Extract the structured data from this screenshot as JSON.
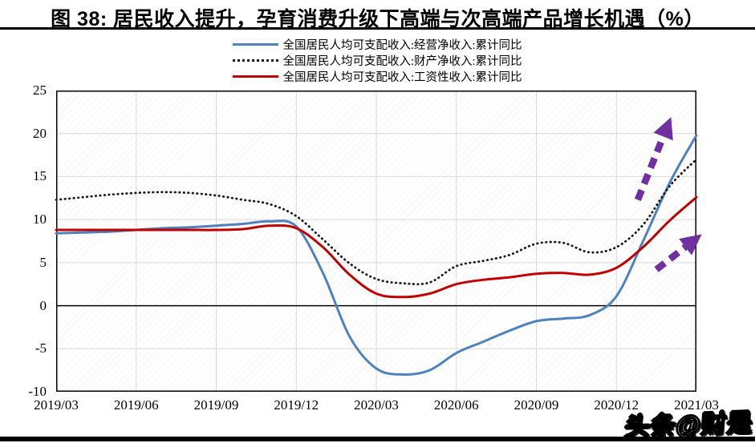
{
  "title": "图 38: 居民收入提升，孕育消费升级下高端与次高端产品增长机遇（%）",
  "watermark": "头条@财是",
  "colors": {
    "series_blue": "#4F81BD",
    "series_black": "#1a1a1a",
    "series_red": "#C00000",
    "arrow_purple": "#7030A0",
    "gridline": "#D9D9D9",
    "axis": "#000000"
  },
  "chart_data": {
    "type": "line",
    "title": "图 38: 居民收入提升，孕育消费升级下高端与次高端产品增长机遇（%）",
    "xlabel": "",
    "ylabel": "",
    "ylim": [
      -10,
      25
    ],
    "y_ticks": [
      25,
      20,
      15,
      10,
      5,
      0,
      -5,
      -10
    ],
    "x_tick_labels": [
      "2019/03",
      "2019/06",
      "2019/09",
      "2019/12",
      "2020/03",
      "2020/06",
      "2020/09",
      "2020/12",
      "2021/03"
    ],
    "x": [
      "2019/03",
      "2019/04",
      "2019/05",
      "2019/06",
      "2019/07",
      "2019/08",
      "2019/09",
      "2019/10",
      "2019/11",
      "2019/12",
      "2020/01",
      "2020/02",
      "2020/03",
      "2020/04",
      "2020/05",
      "2020/06",
      "2020/07",
      "2020/08",
      "2020/09",
      "2020/10",
      "2020/11",
      "2020/12",
      "2021/01",
      "2021/02",
      "2021/03"
    ],
    "grid": true,
    "legend_position": "top",
    "series": [
      {
        "name": "全国居民人均可支配收入:经营净收入:累计同比",
        "style": "solid",
        "color": "#4F81BD",
        "values": [
          8.4,
          8.5,
          8.6,
          8.8,
          9.0,
          9.1,
          9.3,
          9.5,
          9.8,
          9.2,
          3.8,
          -3.6,
          -7.3,
          -8.0,
          -7.5,
          -5.5,
          -4.2,
          -2.9,
          -1.8,
          -1.5,
          -1.1,
          1.1,
          7.5,
          14.3,
          19.8
        ]
      },
      {
        "name": "全国居民人均可支配收入:财产净收入:累计同比",
        "style": "dotted",
        "color": "#1a1a1a",
        "values": [
          12.3,
          12.6,
          12.9,
          13.1,
          13.2,
          13.1,
          12.8,
          12.3,
          11.8,
          10.4,
          7.7,
          4.9,
          3.1,
          2.6,
          2.7,
          4.6,
          5.2,
          5.9,
          7.2,
          7.3,
          6.2,
          6.8,
          9.4,
          13.9,
          17.0
        ]
      },
      {
        "name": "全国居民人均可支配收入:工资性收入:累计同比",
        "style": "solid",
        "color": "#C00000",
        "values": [
          8.8,
          8.8,
          8.8,
          8.8,
          8.8,
          8.8,
          8.8,
          8.9,
          9.3,
          9.0,
          6.8,
          3.6,
          1.4,
          1.0,
          1.4,
          2.5,
          3.0,
          3.3,
          3.7,
          3.8,
          3.6,
          4.4,
          6.8,
          9.9,
          12.6
        ]
      }
    ],
    "annotations": [
      {
        "kind": "dashed-arrow",
        "color": "#7030A0",
        "from": {
          "m": 21.8,
          "v": 12.3
        },
        "to": {
          "m": 23.05,
          "v": 21.9
        }
      },
      {
        "kind": "dashed-arrow",
        "color": "#7030A0",
        "from": {
          "m": 22.5,
          "v": 4.2
        },
        "to": {
          "m": 24.2,
          "v": 8.3
        }
      }
    ]
  }
}
